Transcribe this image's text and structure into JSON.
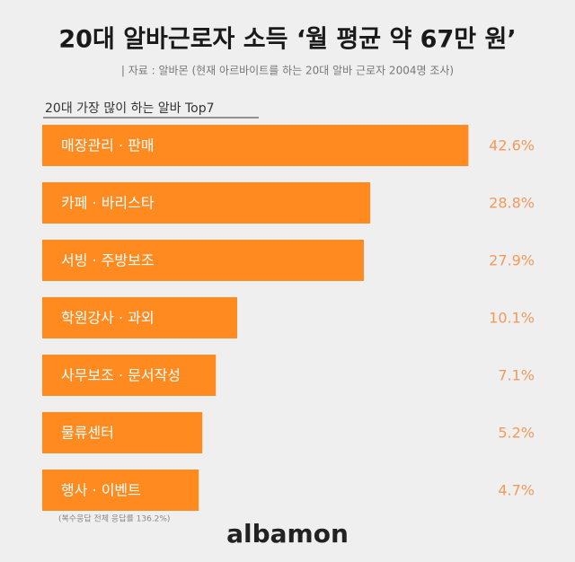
{
  "chart_data": {
    "type": "bar",
    "title": "20대 알바근로자 소득 ‘월 평균 약 67만 원’",
    "subtitle": "| 자료 : 알바몬 (현재 아르바이트를 하는 20대 알바 근로자 2004명 조사)",
    "chart_title": "20대 가장 많이 하는 알바 Top7",
    "categories": [
      "매장관리 · 판매",
      "카페 · 바리스타",
      "서빙 · 주방보조",
      "학원강사 · 과외",
      "사무보조 · 문서작성",
      "물류센터",
      "행사 · 이벤트"
    ],
    "values": [
      42.6,
      28.8,
      27.9,
      10.1,
      7.1,
      5.2,
      4.7
    ],
    "value_labels": [
      "42.6%",
      "28.8%",
      "27.9%",
      "10.1%",
      "7.1%",
      "5.2%",
      "4.7%"
    ],
    "color": "#ff8a1f",
    "note": "(복수응답 전체 응답률 136.2%)",
    "logo": "albamon"
  }
}
